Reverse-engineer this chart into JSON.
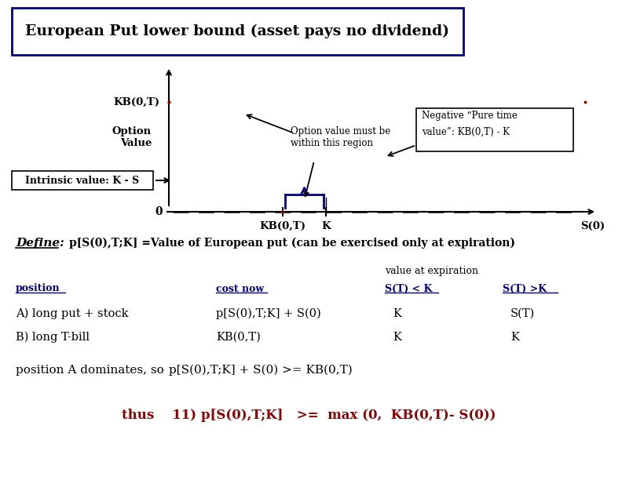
{
  "title": "European Put lower bound (asset pays no dividend)",
  "bg_color": "#ffffff",
  "dark_red": "#8b0000",
  "navy": "#000080",
  "black": "#000000",
  "label_KB_xaxis": "KB(0,T)",
  "label_K_xaxis": "K",
  "label_S0": "S(0)",
  "label_KB_yaxis": "KB(0,T)",
  "label_option_value": "Option\nValue",
  "label_intrinsic": "Intrinsic value: K - S",
  "annotation1": "Option value must be\nwithin this region",
  "annotation2_line1": "Negative “Pure time",
  "annotation2_line2": "value”: KB(0,T) - K",
  "define_line": "Define:   p[S(0),T;K] =Value of European put (can be exercised only at expiration)",
  "value_at_expiration": "value at expiration",
  "position_label": "position",
  "cost_now_label": "cost now",
  "st_less_k_label": "S(T) < K",
  "st_greater_k_label": "S(T) >K",
  "row1_pos": "A) long put + stock",
  "row1_cost": "p[S(0),T;K] + S(0)",
  "row1_stk": "K",
  "row1_stgk": "S(T)",
  "row2_pos": "B) long T-bill",
  "row2_cost": "KB(0,T)",
  "row2_stk": "K",
  "row2_stgk": "K",
  "dominates_text1": "position A dominates, so",
  "dominates_text2": "p[S(0),T;K] + S(0) >= KB(0,T)",
  "thus_line": "thus    11) p[S(0),T;K]   >=  max (0,  KB(0,T)- S(0))"
}
